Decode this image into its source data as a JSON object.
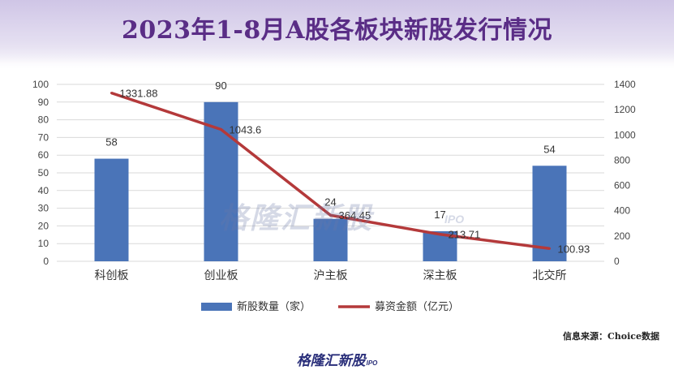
{
  "title": "2023年1-8月A股各板块新股发行情况",
  "source": "信息来源：Choice数据",
  "watermark": {
    "text": "格隆汇新股",
    "sub": "IPO"
  },
  "logo": {
    "text": "格隆汇新股",
    "sub": "IPO"
  },
  "colors": {
    "bar": "#4a74b8",
    "line": "#b4393a",
    "title": "#5a2d86"
  },
  "chart_data": {
    "type": "bar",
    "categories": [
      "科创板",
      "创业板",
      "沪主板",
      "深主板",
      "北交所"
    ],
    "series": [
      {
        "name": "新股数量（家）",
        "type": "bar",
        "axis": "left",
        "values": [
          58,
          90,
          24,
          17,
          54
        ]
      },
      {
        "name": "募资金额（亿元）",
        "type": "line",
        "axis": "right",
        "values": [
          1331.88,
          1043.6,
          364.45,
          213.71,
          100.93
        ]
      }
    ],
    "y_left": {
      "min": 0,
      "max": 100,
      "ticks": [
        0,
        10,
        20,
        30,
        40,
        50,
        60,
        70,
        80,
        90,
        100
      ]
    },
    "y_right": {
      "min": 0,
      "max": 1400,
      "ticks": [
        0,
        200,
        400,
        600,
        800,
        1000,
        1200,
        1400
      ]
    },
    "grid": true,
    "legend": "bottom"
  }
}
